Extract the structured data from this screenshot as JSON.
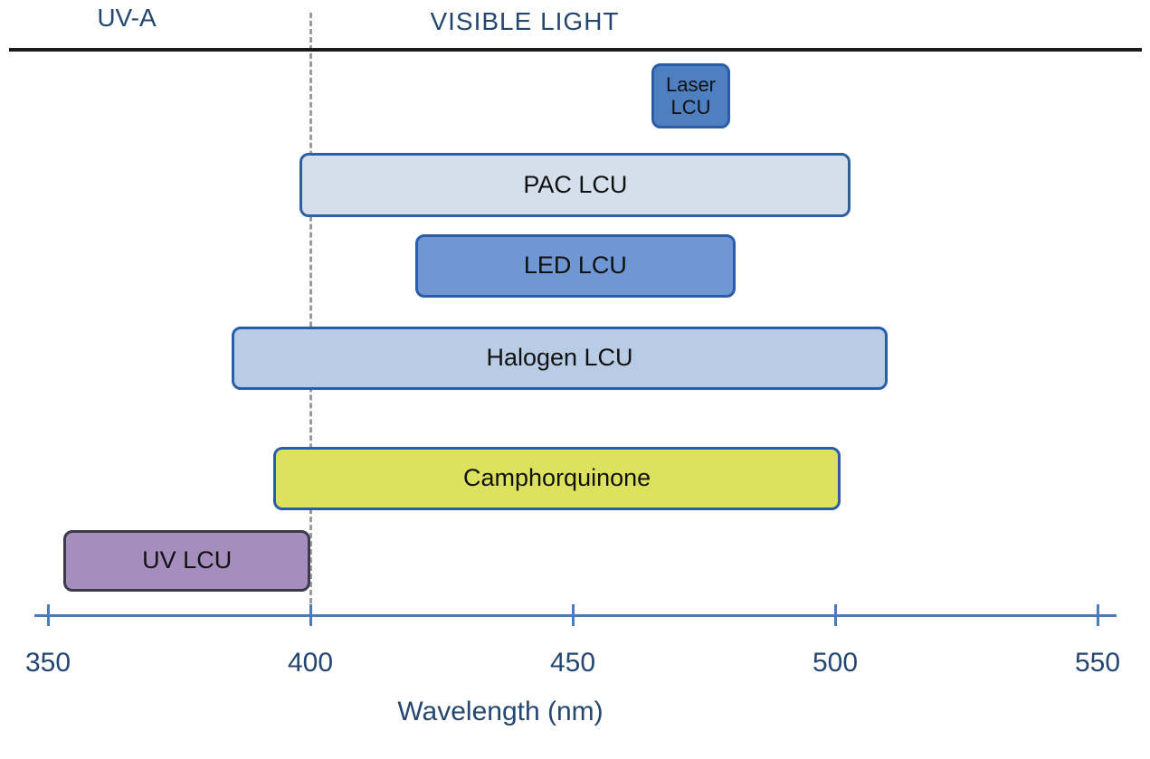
{
  "chart_data": {
    "type": "bar",
    "subtype": "horizontal-wavelength-range-bars",
    "xlabel": "Wavelength (nm)",
    "x_axis": {
      "min": 350,
      "max": 550,
      "ticks": [
        350,
        400,
        450,
        500,
        550
      ]
    },
    "regions": [
      {
        "label": "UV-A",
        "from_nm": 350,
        "to_nm": 400
      },
      {
        "label": "VISIBLE LIGHT",
        "from_nm": 400,
        "to_nm": 550
      }
    ],
    "boundary_nm": 400,
    "bars": [
      {
        "id": "laser-lcu",
        "label": "Laser\nLCU",
        "from_nm": 465,
        "to_nm": 480,
        "row": 0,
        "fill": "#4d7fc1",
        "border": "#2a5ca8",
        "text_color": "#111111"
      },
      {
        "id": "pac-lcu",
        "label": "PAC LCU",
        "from_nm": 398,
        "to_nm": 503,
        "row": 1,
        "fill": "#d4dfeb",
        "border": "#2f5f9f",
        "text_color": "#111111"
      },
      {
        "id": "led-lcu",
        "label": "LED LCU",
        "from_nm": 420,
        "to_nm": 481,
        "row": 2,
        "fill": "#6f97d3",
        "border": "#2a5ca8",
        "text_color": "#111111"
      },
      {
        "id": "halogen-lcu",
        "label": "Halogen LCU",
        "from_nm": 385,
        "to_nm": 510,
        "row": 3,
        "fill": "#b9cce6",
        "border": "#2a5ca8",
        "text_color": "#111111"
      },
      {
        "id": "camphorquinone",
        "label": "Camphorquinone",
        "from_nm": 393,
        "to_nm": 501,
        "row": 4,
        "fill": "#dce25e",
        "border": "#2a5ca8",
        "text_color": "#111111"
      },
      {
        "id": "uv-lcu",
        "label": "UV LCU",
        "from_nm": 353,
        "to_nm": 400,
        "row": 5,
        "fill": "#a58dbe",
        "border": "#3a3a4a",
        "text_color": "#111111"
      }
    ],
    "colors": {
      "axis": "#4a7bc0",
      "axis_text": "#24476f",
      "top_line": "#1a1a1a",
      "dashed_line": "#9b9b9b",
      "background": "#ffffff"
    }
  }
}
